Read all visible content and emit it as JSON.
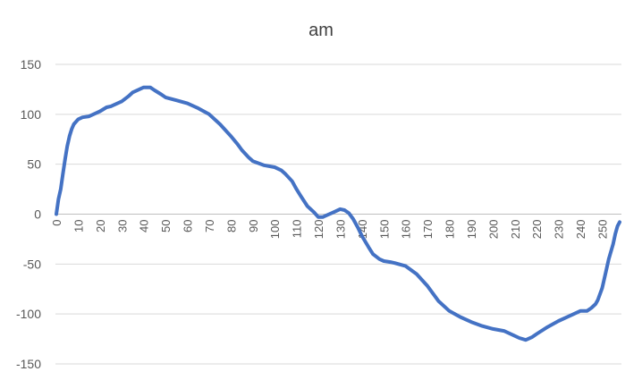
{
  "chart_data": {
    "type": "line",
    "title": "am",
    "xlabel": "",
    "ylabel": "",
    "ylim": [
      -150,
      150
    ],
    "xlim": [
      0,
      258
    ],
    "yticks": [
      150,
      100,
      50,
      0,
      -50,
      -100,
      -150
    ],
    "xticks": [
      0,
      10,
      20,
      30,
      40,
      50,
      60,
      70,
      80,
      90,
      100,
      110,
      120,
      130,
      140,
      150,
      160,
      170,
      180,
      190,
      200,
      210,
      220,
      230,
      240,
      250
    ],
    "grid": true,
    "legend": "none",
    "color": "#4472C4",
    "series": [
      {
        "name": "",
        "x": [
          0,
          1,
          2,
          3,
          4,
          5,
          6,
          7,
          8,
          10,
          12,
          15,
          18,
          20,
          23,
          25,
          28,
          30,
          33,
          35,
          38,
          40,
          43,
          45,
          48,
          50,
          55,
          60,
          65,
          70,
          75,
          80,
          83,
          85,
          88,
          90,
          95,
          100,
          103,
          105,
          108,
          110,
          112,
          115,
          118,
          120,
          122,
          124,
          126,
          128,
          130,
          132,
          134,
          136,
          138,
          140,
          143,
          145,
          148,
          150,
          153,
          155,
          160,
          165,
          170,
          175,
          180,
          185,
          190,
          195,
          200,
          205,
          210,
          212,
          215,
          218,
          220,
          225,
          230,
          235,
          240,
          243,
          245,
          247,
          248,
          250,
          252,
          253,
          255,
          256,
          257,
          258
        ],
        "y": [
          0,
          15,
          25,
          40,
          55,
          68,
          78,
          85,
          90,
          95,
          97,
          98,
          101,
          103,
          107,
          108,
          111,
          113,
          118,
          122,
          125,
          127,
          127,
          124,
          120,
          117,
          114,
          111,
          106,
          100,
          90,
          78,
          70,
          64,
          57,
          53,
          49,
          47,
          44,
          40,
          33,
          25,
          18,
          8,
          2,
          -3,
          -3,
          -1,
          1,
          3,
          5,
          4,
          1,
          -5,
          -13,
          -22,
          -33,
          -40,
          -45,
          -47,
          -48,
          -49,
          -52,
          -60,
          -72,
          -87,
          -97,
          -103,
          -108,
          -112,
          -115,
          -117,
          -122,
          -124,
          -126,
          -123,
          -120,
          -113,
          -107,
          -102,
          -97,
          -97,
          -94,
          -90,
          -86,
          -74,
          -55,
          -45,
          -30,
          -20,
          -12,
          -8
        ]
      }
    ]
  }
}
